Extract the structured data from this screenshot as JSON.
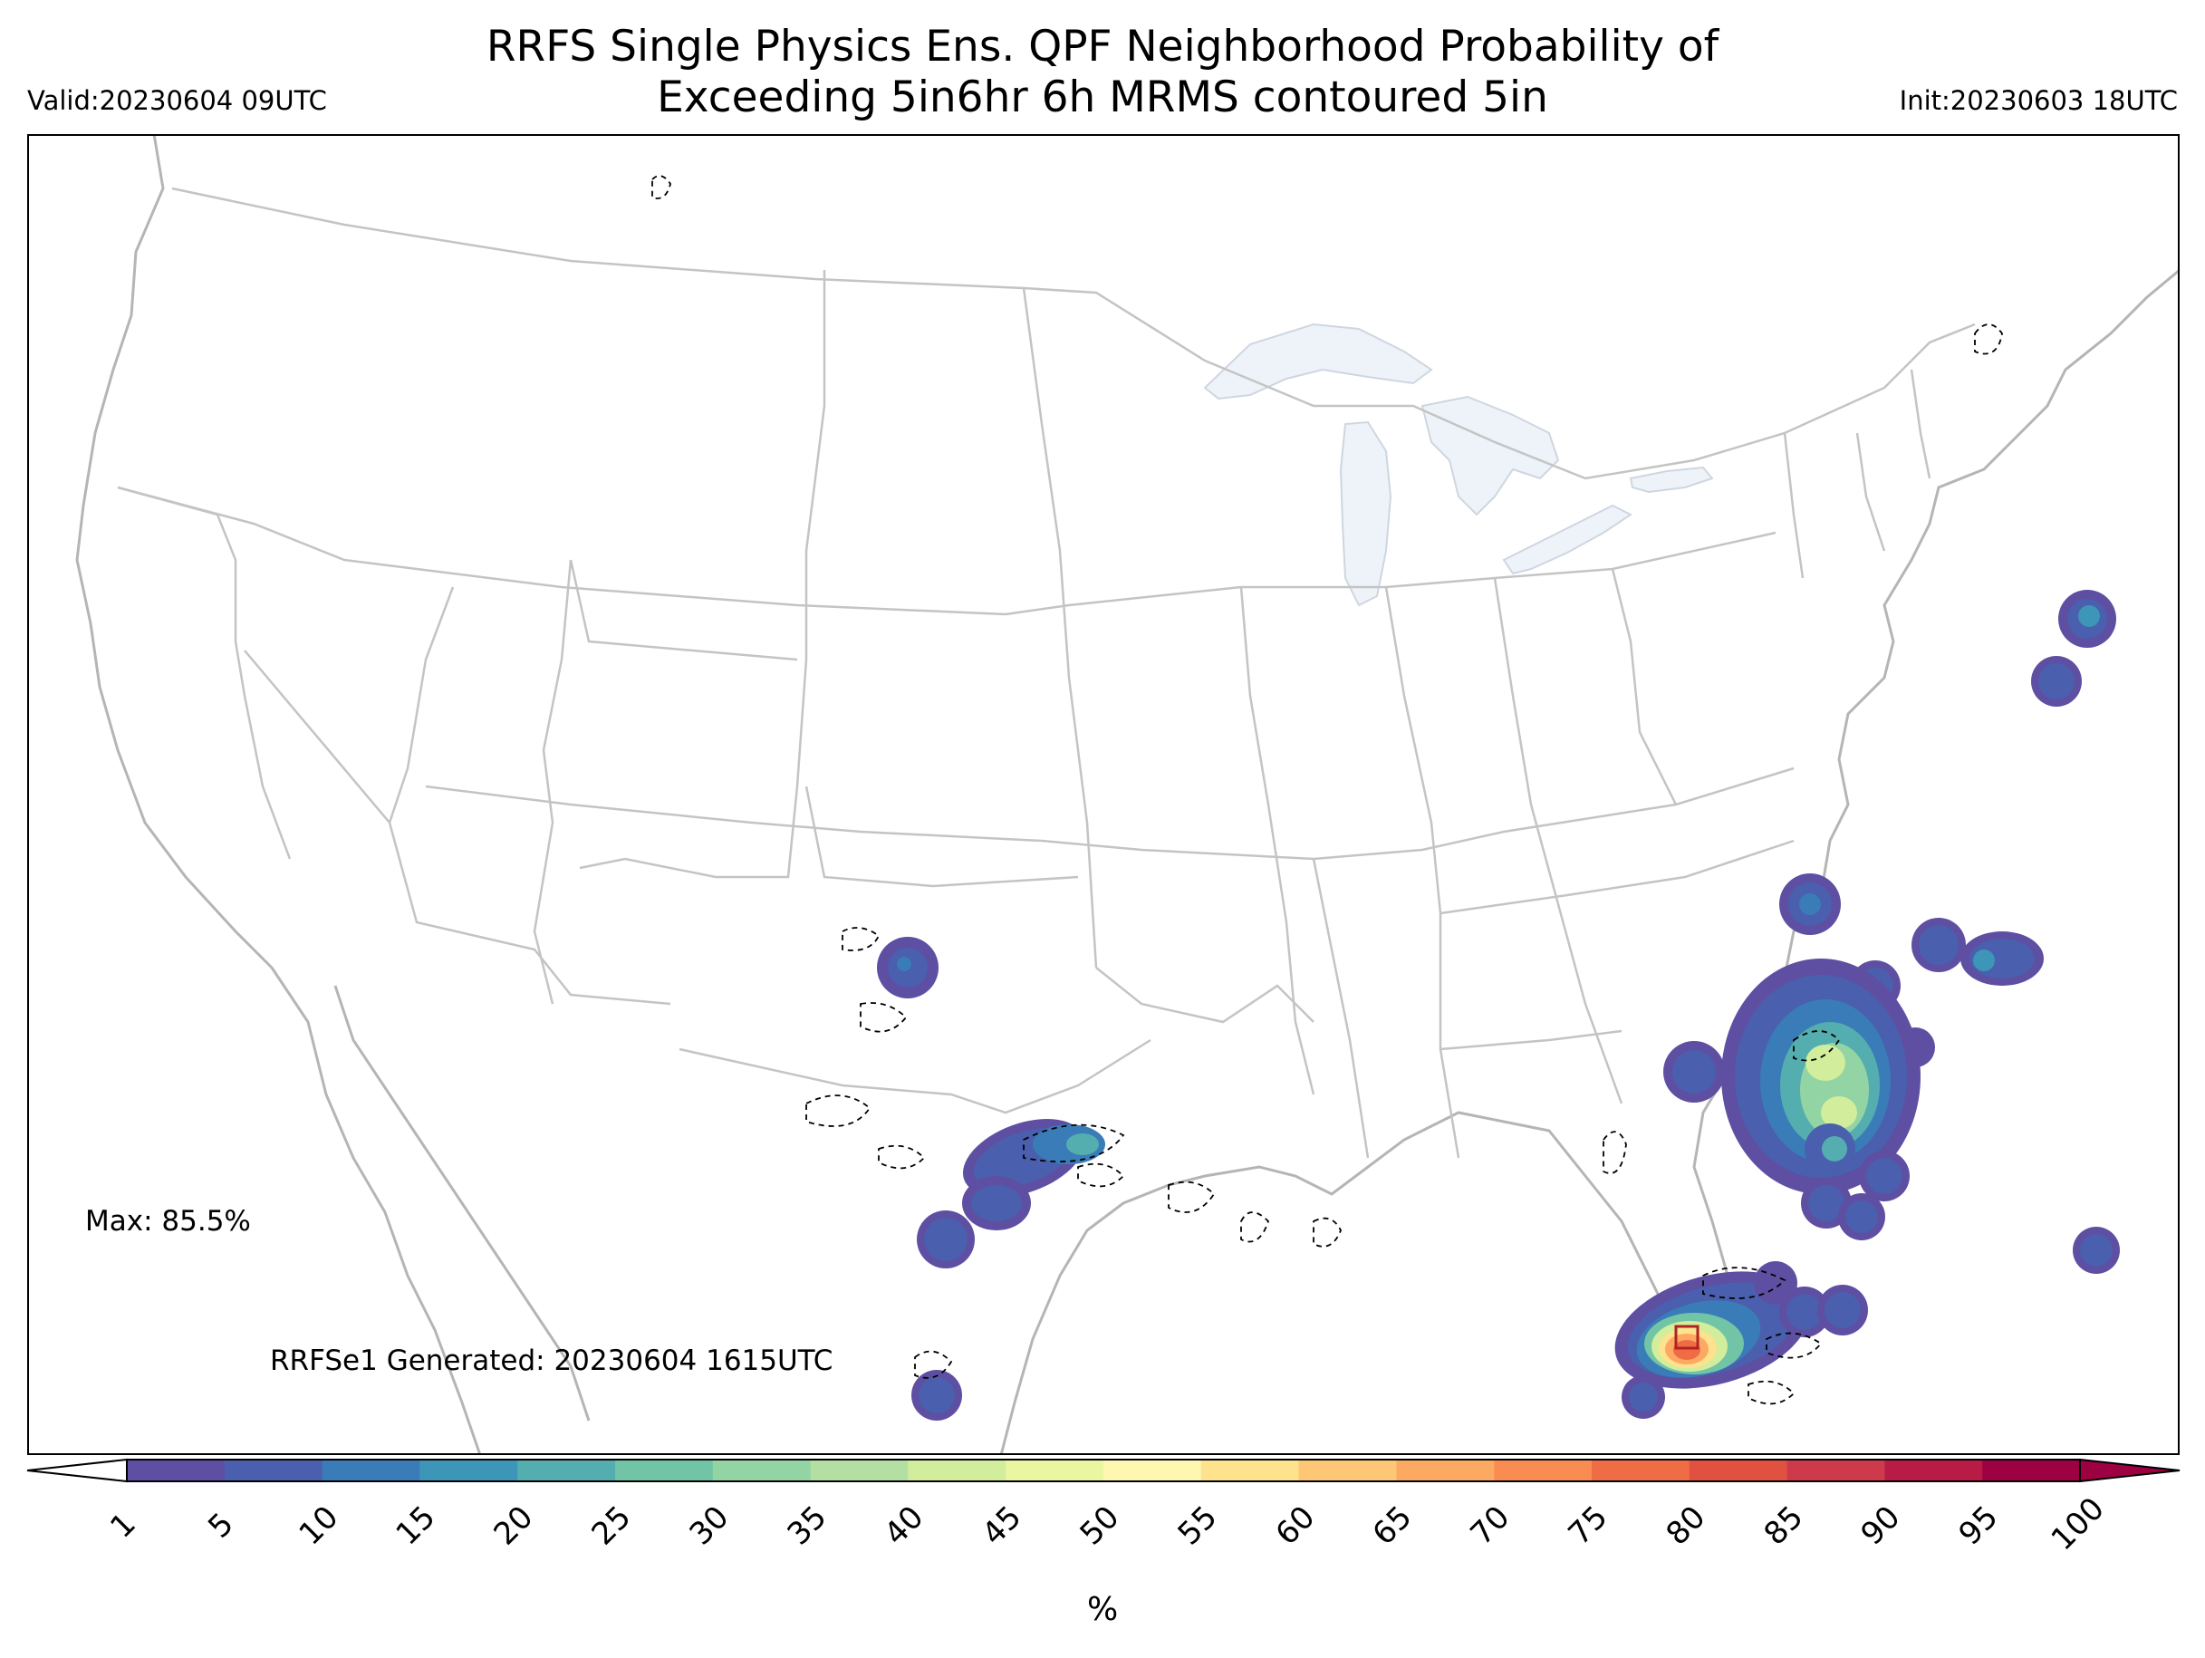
{
  "header": {
    "title_line1": "RRFS Single Physics Ens. QPF Neighborhood Probability of",
    "title_line2": "Exceeding 5in6hr 6h MRMS contoured 5in",
    "valid": "Valid:20230604 09UTC",
    "init": "Init:20230603 18UTC"
  },
  "map": {
    "region": "Continental United States",
    "max_label": "Max: 85.5%",
    "generated_label": "RRFSe1 Generated: 20230604 1615UTC",
    "colors": {
      "border": "#bdbdbd",
      "lakes": "#eef3fa",
      "contour": "#000000",
      "max_box": "#b22222"
    }
  },
  "colorbar": {
    "ticks": [
      "1",
      "5",
      "10",
      "15",
      "20",
      "25",
      "30",
      "35",
      "40",
      "45",
      "50",
      "55",
      "60",
      "65",
      "70",
      "75",
      "80",
      "85",
      "90",
      "95",
      "100"
    ],
    "colors": [
      "#5e4fa2",
      "#4a5fad",
      "#3a7cb8",
      "#3d96b8",
      "#54aeaf",
      "#72c4a6",
      "#93d4a4",
      "#b3e0a2",
      "#d2ed9b",
      "#ebf7a0",
      "#fef7b0",
      "#fee28e",
      "#fdc776",
      "#fca964",
      "#f98c53",
      "#f06c45",
      "#e0513f",
      "#cd3a4b",
      "#b81c46",
      "#9e0142"
    ],
    "unit": "%"
  }
}
